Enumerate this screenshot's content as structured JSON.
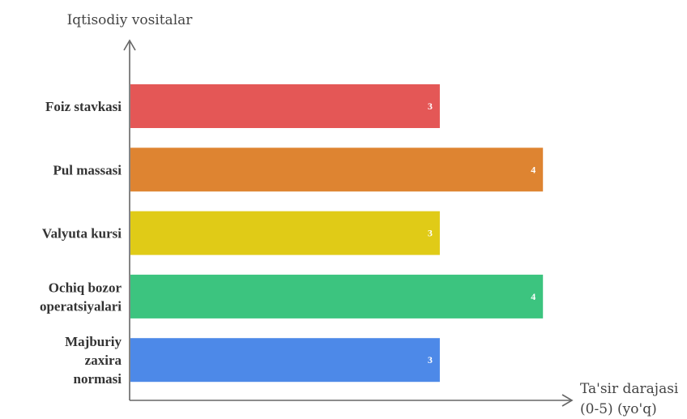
{
  "chart_data": {
    "type": "bar",
    "orientation": "horizontal",
    "ylabel": "Iqtisodiy vositalar",
    "xlabel_lines": [
      "Ta'sir darajasi",
      "(0-5) (yo'q)"
    ],
    "xlim": [
      0,
      5
    ],
    "grid": false,
    "legend": "none",
    "categories": [
      [
        "Foiz stavkasi"
      ],
      [
        "Pul massasi"
      ],
      [
        "Valyuta kursi"
      ],
      [
        "Ochiq bozor",
        "operatsiyalari"
      ],
      [
        "Majburiy",
        "zaxira",
        "normasi"
      ]
    ],
    "values": [
      3,
      4,
      3,
      4,
      3
    ],
    "colors": [
      "#e45756",
      "#de8431",
      "#e0cb17",
      "#3cc47f",
      "#4d89e8"
    ]
  }
}
